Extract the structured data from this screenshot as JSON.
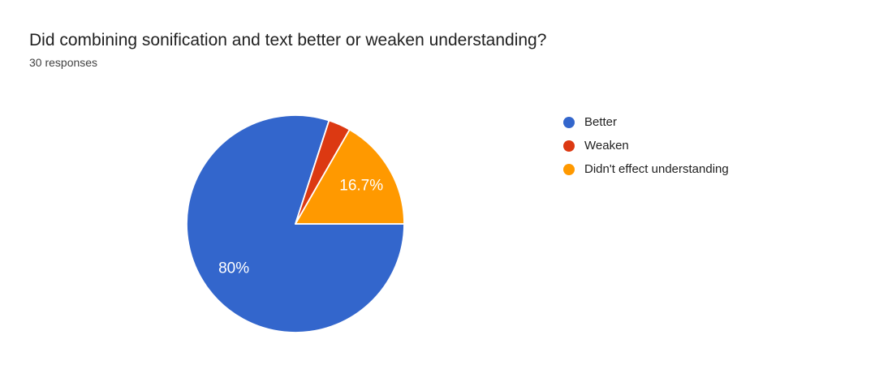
{
  "header": {
    "title": "Did combining sonification and text better or weaken understanding?",
    "responses_count": "30 responses"
  },
  "chart_data": {
    "type": "pie",
    "title": "Did combining sonification and text better or weaken understanding?",
    "subtitle": "30 responses",
    "categories": [
      "Better",
      "Weaken",
      "Didn't effect understanding"
    ],
    "values": [
      80,
      3.3,
      16.7
    ],
    "slice_labels": [
      "80%",
      "",
      "16.7%"
    ],
    "colors": [
      "#3366CC",
      "#DC3912",
      "#FF9900"
    ],
    "label_color": "#FFFFFF",
    "slice_border_color": "#FFFFFF",
    "legend_position": "right",
    "start_angle_deg": 90
  }
}
